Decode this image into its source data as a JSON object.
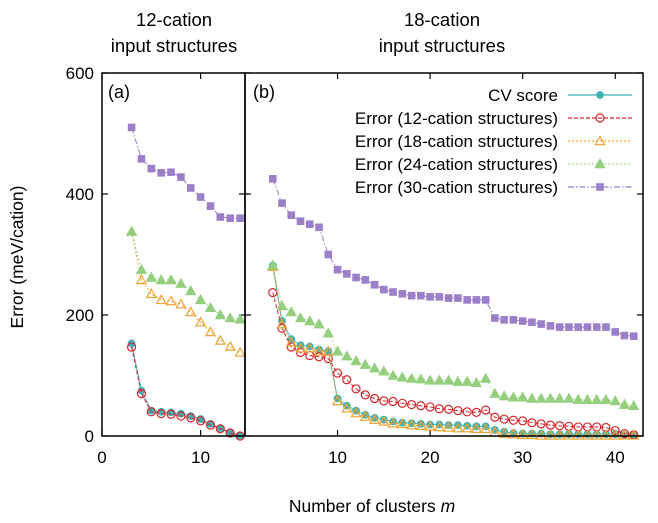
{
  "panel_a_header": [
    "12-cation",
    "input structures"
  ],
  "panel_b_header": [
    "18-cation",
    "input structures"
  ],
  "y_axis_label": "Error (meV/cation)",
  "x_axis_label": {
    "prefix": "Number of clusters ",
    "var": "m"
  },
  "colors": {
    "cv": "#3fb2b4",
    "e12": "#d6262b",
    "e18": "#f0a332",
    "e24": "#94cf7e",
    "e30": "#9b7fc8"
  },
  "chart_data": [
    {
      "type": "line",
      "panel_label": "(a)",
      "xlim": [
        0,
        14.5
      ],
      "ylim": [
        0,
        600
      ],
      "xticks": [
        0,
        10
      ],
      "yticks": [
        0,
        200,
        400,
        600
      ],
      "series": [
        {
          "name": "CV score",
          "color_key": "cv",
          "marker": "circle-filled",
          "x": [
            3,
            4,
            5,
            6,
            7,
            8,
            9,
            10,
            11,
            12,
            13,
            14
          ],
          "y": [
            153,
            75,
            42,
            40,
            39,
            37,
            33,
            28,
            20,
            13,
            6,
            1
          ]
        },
        {
          "name": "Error (12-cation structures)",
          "color_key": "e12",
          "marker": "circle-open",
          "x": [
            3,
            4,
            5,
            6,
            7,
            8,
            9,
            10,
            11,
            12,
            13,
            14
          ],
          "y": [
            147,
            70,
            40,
            37,
            36,
            33,
            30,
            25,
            18,
            12,
            5,
            0
          ]
        },
        {
          "name": "Error (18-cation structures)",
          "color_key": "e18",
          "marker": "triangle-open",
          "x": [
            3,
            4,
            5,
            6,
            7,
            8,
            9,
            10,
            11,
            12,
            13,
            14
          ],
          "y": [
            338,
            258,
            235,
            225,
            223,
            218,
            205,
            188,
            172,
            158,
            148,
            138
          ]
        },
        {
          "name": "Error (24-cation structures)",
          "color_key": "e24",
          "marker": "triangle-filled",
          "x": [
            3,
            4,
            5,
            6,
            7,
            8,
            9,
            10,
            11,
            12,
            13,
            14
          ],
          "y": [
            338,
            275,
            262,
            258,
            258,
            252,
            240,
            225,
            212,
            200,
            195,
            193
          ]
        },
        {
          "name": "Error (30-cation structures)",
          "color_key": "e30",
          "marker": "square-filled",
          "x": [
            3,
            4,
            5,
            6,
            7,
            8,
            9,
            10,
            11,
            12,
            13,
            14
          ],
          "y": [
            510,
            458,
            442,
            435,
            436,
            428,
            410,
            395,
            380,
            362,
            360,
            360
          ]
        }
      ]
    },
    {
      "type": "line",
      "panel_label": "(b)",
      "xlim": [
        0,
        43
      ],
      "ylim": [
        0,
        600
      ],
      "xticks": [
        10,
        20,
        30,
        40
      ],
      "yticks": [
        0,
        200,
        400,
        600
      ],
      "legend_position": "top-right",
      "series": [
        {
          "name": "CV score",
          "color_key": "cv",
          "marker": "circle-filled",
          "x": [
            3,
            4,
            5,
            6,
            7,
            8,
            9,
            10,
            11,
            12,
            13,
            14,
            15,
            16,
            17,
            18,
            19,
            20,
            21,
            22,
            23,
            24,
            25,
            26,
            27,
            28,
            29,
            30,
            31,
            32,
            33,
            34,
            35,
            36,
            37,
            38,
            39,
            40,
            41,
            42
          ],
          "y": [
            282,
            190,
            160,
            150,
            148,
            143,
            140,
            62,
            50,
            42,
            35,
            30,
            27,
            24,
            22,
            21,
            20,
            19,
            19,
            18,
            18,
            17,
            16,
            16,
            10,
            7,
            5,
            4,
            4,
            4,
            3,
            3,
            3,
            3,
            3,
            3,
            3,
            3,
            2,
            2
          ]
        },
        {
          "name": "Error (12-cation structures)",
          "color_key": "e12",
          "marker": "circle-open",
          "x": [
            3,
            4,
            5,
            6,
            7,
            8,
            9,
            10,
            11,
            12,
            13,
            14,
            15,
            16,
            17,
            18,
            19,
            20,
            21,
            22,
            23,
            24,
            25,
            26,
            27,
            28,
            29,
            30,
            31,
            32,
            33,
            34,
            35,
            36,
            37,
            38,
            39,
            40,
            41,
            42
          ],
          "y": [
            237,
            178,
            147,
            138,
            133,
            131,
            128,
            104,
            93,
            78,
            68,
            62,
            58,
            57,
            54,
            52,
            50,
            48,
            45,
            44,
            42,
            40,
            39,
            43,
            31,
            28,
            26,
            25,
            22,
            20,
            18,
            17,
            16,
            15,
            15,
            15,
            14,
            9,
            4,
            2
          ]
        },
        {
          "name": "Error (18-cation structures)",
          "color_key": "e18",
          "marker": "triangle-open",
          "x": [
            3,
            4,
            5,
            6,
            7,
            8,
            9,
            10,
            11,
            12,
            13,
            14,
            15,
            16,
            17,
            18,
            19,
            20,
            21,
            22,
            23,
            24,
            25,
            26,
            27,
            28,
            29,
            30,
            31,
            32,
            33,
            34,
            35,
            36,
            37,
            38,
            39,
            40,
            41,
            42
          ],
          "y": [
            280,
            185,
            155,
            145,
            145,
            140,
            140,
            58,
            46,
            38,
            32,
            27,
            24,
            21,
            20,
            18,
            17,
            16,
            15,
            14,
            13,
            13,
            12,
            12,
            6,
            4,
            3,
            2,
            2,
            1,
            1,
            1,
            1,
            1,
            1,
            1,
            1,
            1,
            1,
            1
          ]
        },
        {
          "name": "Error (24-cation structures)",
          "color_key": "e24",
          "marker": "triangle-filled",
          "x": [
            3,
            4,
            5,
            6,
            7,
            8,
            9,
            10,
            11,
            12,
            13,
            14,
            15,
            16,
            17,
            18,
            19,
            20,
            21,
            22,
            23,
            24,
            25,
            26,
            27,
            28,
            29,
            30,
            31,
            32,
            33,
            34,
            35,
            36,
            37,
            38,
            39,
            40,
            41,
            42
          ],
          "y": [
            282,
            215,
            205,
            195,
            190,
            185,
            170,
            140,
            132,
            124,
            118,
            112,
            107,
            100,
            97,
            95,
            94,
            92,
            92,
            92,
            90,
            90,
            88,
            95,
            70,
            66,
            64,
            64,
            62,
            62,
            62,
            62,
            62,
            60,
            60,
            60,
            60,
            58,
            52,
            50
          ]
        },
        {
          "name": "Error (30-cation structures)",
          "color_key": "e30",
          "marker": "square-filled",
          "x": [
            3,
            4,
            5,
            6,
            7,
            8,
            9,
            10,
            11,
            12,
            13,
            14,
            15,
            16,
            17,
            18,
            19,
            20,
            21,
            22,
            23,
            24,
            25,
            26,
            27,
            28,
            29,
            30,
            31,
            32,
            33,
            34,
            35,
            36,
            37,
            38,
            39,
            40,
            41,
            42
          ],
          "y": [
            425,
            385,
            365,
            355,
            350,
            345,
            300,
            275,
            268,
            262,
            258,
            250,
            242,
            238,
            235,
            232,
            232,
            230,
            230,
            228,
            228,
            225,
            225,
            225,
            195,
            192,
            192,
            190,
            188,
            185,
            182,
            180,
            180,
            180,
            180,
            180,
            180,
            172,
            166,
            165
          ]
        }
      ]
    }
  ]
}
